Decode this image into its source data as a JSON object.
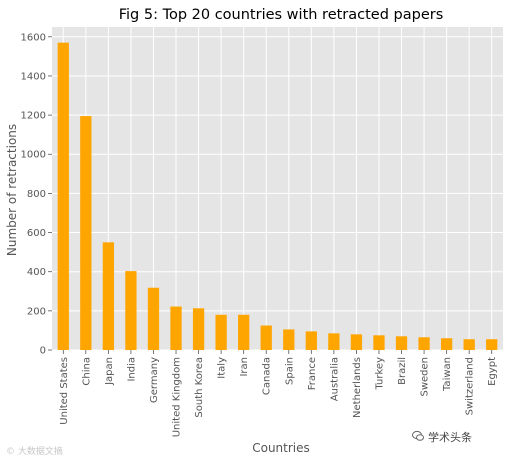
{
  "chart_data": {
    "type": "bar",
    "title": "Fig 5: Top 20 countries with retracted papers",
    "xlabel": "Countries",
    "ylabel": "Number of retractions",
    "ylim": [
      0,
      1650
    ],
    "yticks": [
      0,
      200,
      400,
      600,
      800,
      1000,
      1200,
      1400,
      1600
    ],
    "grid": true,
    "legend": "none",
    "bar_color": "#ffa500",
    "background_color": "#e5e5e5",
    "categories": [
      "United States",
      "China",
      "Japan",
      "India",
      "Germany",
      "United Kingdom",
      "South Korea",
      "Italy",
      "Iran",
      "Canada",
      "Spain",
      "France",
      "Australia",
      "Netherlands",
      "Turkey",
      "Brazil",
      "Sweden",
      "Taiwan",
      "Switzerland",
      "Egypt"
    ],
    "values": [
      1570,
      1195,
      550,
      403,
      318,
      222,
      213,
      180,
      180,
      125,
      105,
      95,
      85,
      80,
      75,
      70,
      65,
      60,
      55,
      55
    ]
  },
  "watermarks": {
    "left": "© 大数据文摘",
    "right": "学术头条",
    "right_icon": "wechat-icon"
  }
}
